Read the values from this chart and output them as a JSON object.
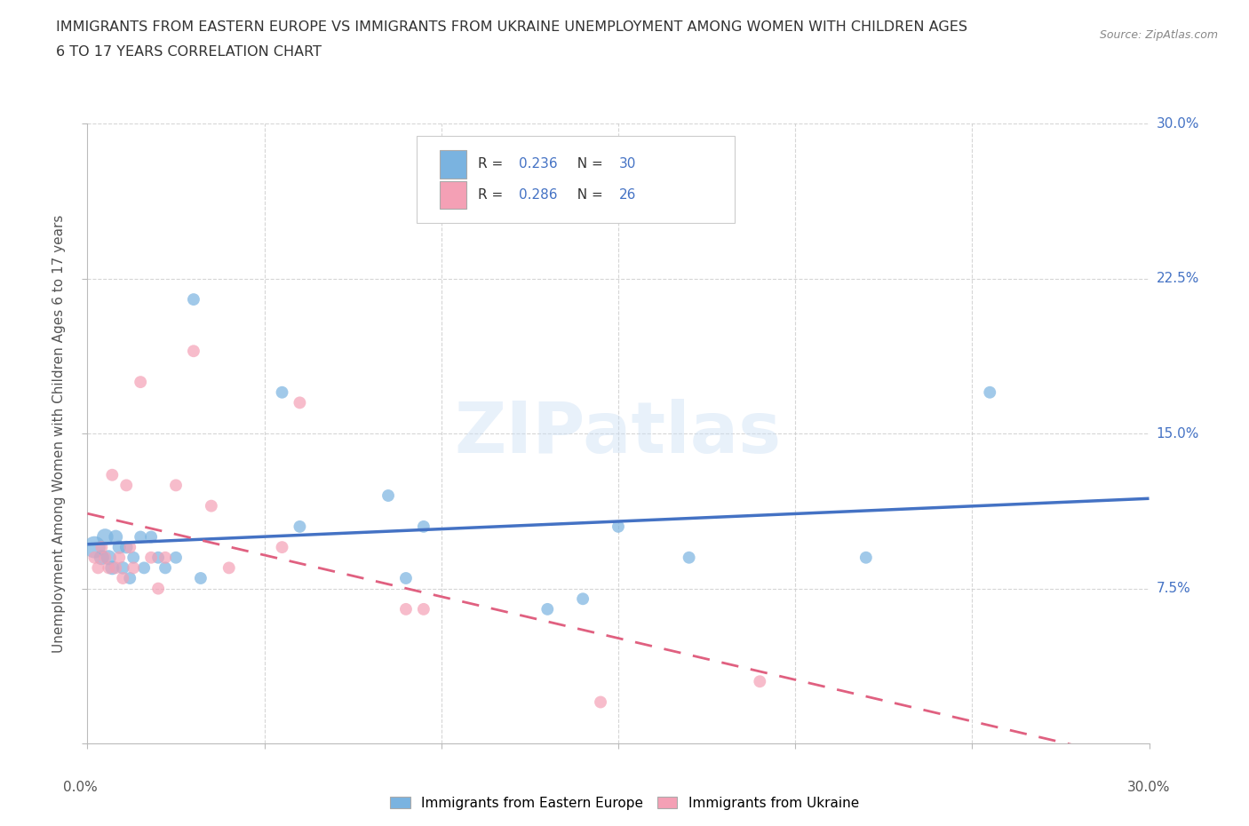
{
  "title_line1": "IMMIGRANTS FROM EASTERN EUROPE VS IMMIGRANTS FROM UKRAINE UNEMPLOYMENT AMONG WOMEN WITH CHILDREN AGES",
  "title_line2": "6 TO 17 YEARS CORRELATION CHART",
  "source": "Source: ZipAtlas.com",
  "ylabel": "Unemployment Among Women with Children Ages 6 to 17 years",
  "xlim": [
    0.0,
    0.3
  ],
  "ylim": [
    0.0,
    0.3
  ],
  "ytick_values": [
    0.0,
    0.075,
    0.15,
    0.225,
    0.3
  ],
  "xtick_values": [
    0.0,
    0.05,
    0.1,
    0.15,
    0.2,
    0.25,
    0.3
  ],
  "grid_color": "#cccccc",
  "background_color": "#ffffff",
  "blue_color": "#7ab3e0",
  "pink_color": "#f4a0b5",
  "blue_line_color": "#4472c4",
  "pink_line_color": "#e06080",
  "blue_R": 0.236,
  "blue_N": 30,
  "pink_R": 0.286,
  "pink_N": 26,
  "label_blue": "Immigrants from Eastern Europe",
  "label_pink": "Immigrants from Ukraine",
  "watermark": "ZIPatlas",
  "ee_x": [
    0.002,
    0.004,
    0.005,
    0.006,
    0.007,
    0.008,
    0.009,
    0.01,
    0.011,
    0.012,
    0.013,
    0.015,
    0.016,
    0.018,
    0.02,
    0.022,
    0.025,
    0.03,
    0.032,
    0.055,
    0.06,
    0.085,
    0.09,
    0.095,
    0.13,
    0.14,
    0.15,
    0.17,
    0.22,
    0.255
  ],
  "ee_y": [
    0.095,
    0.09,
    0.1,
    0.09,
    0.085,
    0.1,
    0.095,
    0.085,
    0.095,
    0.08,
    0.09,
    0.1,
    0.085,
    0.1,
    0.09,
    0.085,
    0.09,
    0.215,
    0.08,
    0.17,
    0.105,
    0.12,
    0.08,
    0.105,
    0.065,
    0.07,
    0.105,
    0.09,
    0.09,
    0.17
  ],
  "ee_sizes": [
    320,
    150,
    180,
    150,
    130,
    130,
    120,
    110,
    110,
    100,
    100,
    100,
    100,
    100,
    100,
    100,
    100,
    100,
    100,
    100,
    100,
    100,
    100,
    100,
    100,
    100,
    100,
    100,
    100,
    100
  ],
  "uk_x": [
    0.002,
    0.003,
    0.004,
    0.005,
    0.006,
    0.007,
    0.008,
    0.009,
    0.01,
    0.011,
    0.012,
    0.013,
    0.015,
    0.018,
    0.02,
    0.022,
    0.025,
    0.03,
    0.035,
    0.04,
    0.055,
    0.06,
    0.09,
    0.095,
    0.145,
    0.19
  ],
  "uk_y": [
    0.09,
    0.085,
    0.095,
    0.09,
    0.085,
    0.13,
    0.085,
    0.09,
    0.08,
    0.125,
    0.095,
    0.085,
    0.175,
    0.09,
    0.075,
    0.09,
    0.125,
    0.19,
    0.115,
    0.085,
    0.095,
    0.165,
    0.065,
    0.065,
    0.02,
    0.03
  ],
  "uk_sizes": [
    100,
    100,
    100,
    100,
    100,
    100,
    100,
    100,
    100,
    100,
    100,
    100,
    100,
    100,
    100,
    100,
    100,
    100,
    100,
    100,
    100,
    100,
    100,
    100,
    100,
    100
  ]
}
